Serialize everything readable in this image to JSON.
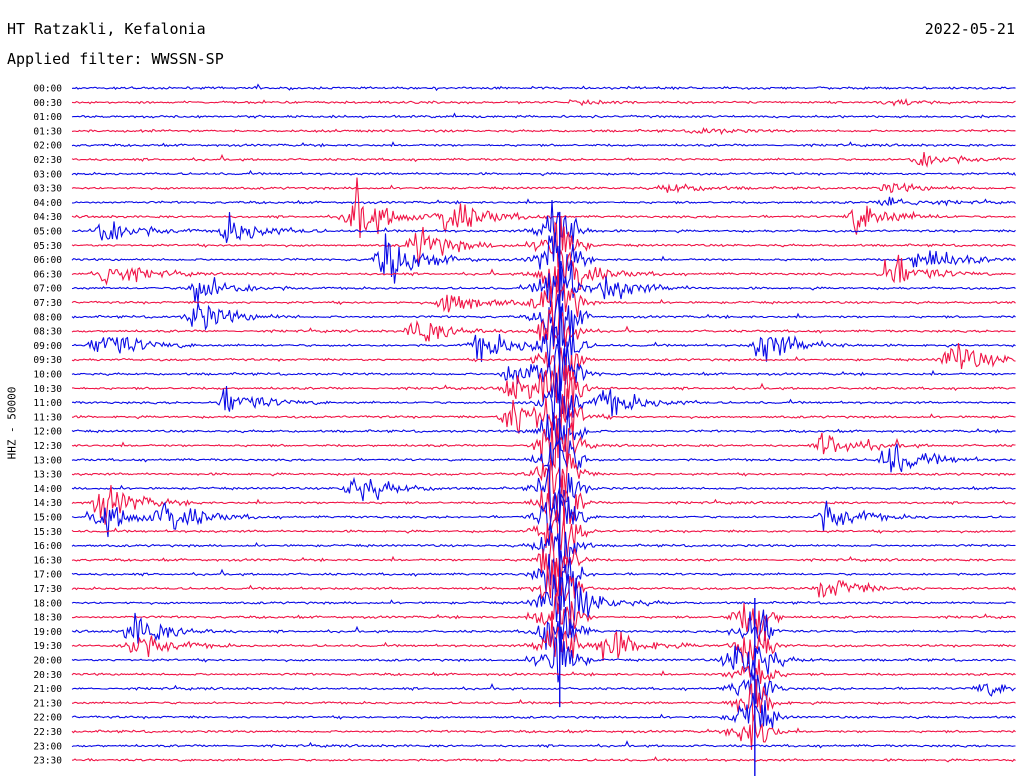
{
  "header": {
    "station": "HT Ratzakli, Kefalonia",
    "date": "2022-05-21",
    "filter": "Applied filter: WWSSN-SP"
  },
  "ylabel": "HHZ - 50000",
  "colors": {
    "blue": "#0a0ae6",
    "red": "#f01446"
  },
  "chart_data": {
    "type": "line",
    "title": "HT Ratzakli, Kefalonia",
    "date": "2022-05-21",
    "filter": "Applied filter: WWSSN-SP",
    "ylabel": "HHZ - 50000",
    "row_labels": [
      "00:00",
      "00:30",
      "01:00",
      "01:30",
      "02:00",
      "02:30",
      "03:00",
      "03:30",
      "04:00",
      "04:30",
      "05:00",
      "05:30",
      "06:00",
      "06:30",
      "07:00",
      "07:30",
      "08:00",
      "08:30",
      "09:00",
      "09:30",
      "10:00",
      "10:30",
      "11:00",
      "11:30",
      "12:00",
      "12:30",
      "13:00",
      "13:30",
      "14:00",
      "14:30",
      "15:00",
      "15:30",
      "16:00",
      "16:30",
      "17:00",
      "17:30",
      "18:00",
      "18:30",
      "19:00",
      "19:30",
      "20:00",
      "20:30",
      "21:00",
      "21:30",
      "22:00",
      "22:30",
      "23:00",
      "23:30"
    ],
    "trace_colors": [
      "blue",
      "red"
    ],
    "trace_minutes": 30,
    "events": [
      {
        "row": 1,
        "minute": 16,
        "amp": 0.15
      },
      {
        "row": 1,
        "minute": 26,
        "amp": 0.3
      },
      {
        "row": 3,
        "minute": 20,
        "amp": 0.3
      },
      {
        "row": 5,
        "minute": 27,
        "amp": 0.9
      },
      {
        "row": 7,
        "minute": 26,
        "amp": 0.5
      },
      {
        "row": 7,
        "minute": 19,
        "amp": 0.5
      },
      {
        "row": 8,
        "minute": 26,
        "amp": 0.7
      },
      {
        "row": 9,
        "minute": 9,
        "amp": 2.6
      },
      {
        "row": 9,
        "minute": 12,
        "amp": 2.0
      },
      {
        "row": 9,
        "minute": 25,
        "amp": 1.6
      },
      {
        "row": 10,
        "minute": 1,
        "amp": 1.6
      },
      {
        "row": 10,
        "minute": 5,
        "amp": 1.4
      },
      {
        "row": 11,
        "minute": 11,
        "amp": 1.8
      },
      {
        "row": 12,
        "minute": 10,
        "amp": 2.4
      },
      {
        "row": 12,
        "minute": 27,
        "amp": 1.5
      },
      {
        "row": 13,
        "minute": 1,
        "amp": 1.6
      },
      {
        "row": 13,
        "minute": 16,
        "amp": 1.2
      },
      {
        "row": 13,
        "minute": 26,
        "amp": 1.8
      },
      {
        "row": 14,
        "minute": 4,
        "amp": 1.6
      },
      {
        "row": 14,
        "minute": 17,
        "amp": 1.3
      },
      {
        "row": 15,
        "minute": 12,
        "amp": 1.5
      },
      {
        "row": 16,
        "minute": 4,
        "amp": 1.6
      },
      {
        "row": 17,
        "minute": 11,
        "amp": 1.4
      },
      {
        "row": 18,
        "minute": 1,
        "amp": 1.8
      },
      {
        "row": 18,
        "minute": 13,
        "amp": 1.5
      },
      {
        "row": 18,
        "minute": 22,
        "amp": 1.8
      },
      {
        "row": 19,
        "minute": 28,
        "amp": 1.8
      },
      {
        "row": 20,
        "minute": 14,
        "amp": 1.4
      },
      {
        "row": 21,
        "minute": 14,
        "amp": 1.3
      },
      {
        "row": 22,
        "minute": 5,
        "amp": 1.4
      },
      {
        "row": 22,
        "minute": 17,
        "amp": 1.5
      },
      {
        "row": 23,
        "minute": 14,
        "amp": 2.2
      },
      {
        "row": 25,
        "minute": 24,
        "amp": 1.4
      },
      {
        "row": 26,
        "minute": 26,
        "amp": 1.8
      },
      {
        "row": 28,
        "minute": 9,
        "amp": 1.6
      },
      {
        "row": 29,
        "minute": 1,
        "amp": 1.8
      },
      {
        "row": 30,
        "minute": 1,
        "amp": 1.6
      },
      {
        "row": 30,
        "minute": 3,
        "amp": 1.8
      },
      {
        "row": 30,
        "minute": 24,
        "amp": 1.5
      },
      {
        "row": 35,
        "minute": 24,
        "amp": 1.2
      },
      {
        "row": 36,
        "minute": 16,
        "amp": 1.5
      },
      {
        "row": 38,
        "minute": 2,
        "amp": 1.7
      },
      {
        "row": 39,
        "minute": 2,
        "amp": 1.6
      },
      {
        "row": 39,
        "minute": 17,
        "amp": 1.8
      },
      {
        "row": 40,
        "minute": 21,
        "amp": 1.0
      },
      {
        "row": 42,
        "minute": 29,
        "amp": 0.7
      }
    ],
    "large_events": [
      {
        "minute": 15.5,
        "start_row": 9.5,
        "end_row": 40.5,
        "amp": 2.4
      },
      {
        "minute": 21.7,
        "start_row": 36.5,
        "end_row": 45.5,
        "amp": 1.6
      }
    ]
  }
}
